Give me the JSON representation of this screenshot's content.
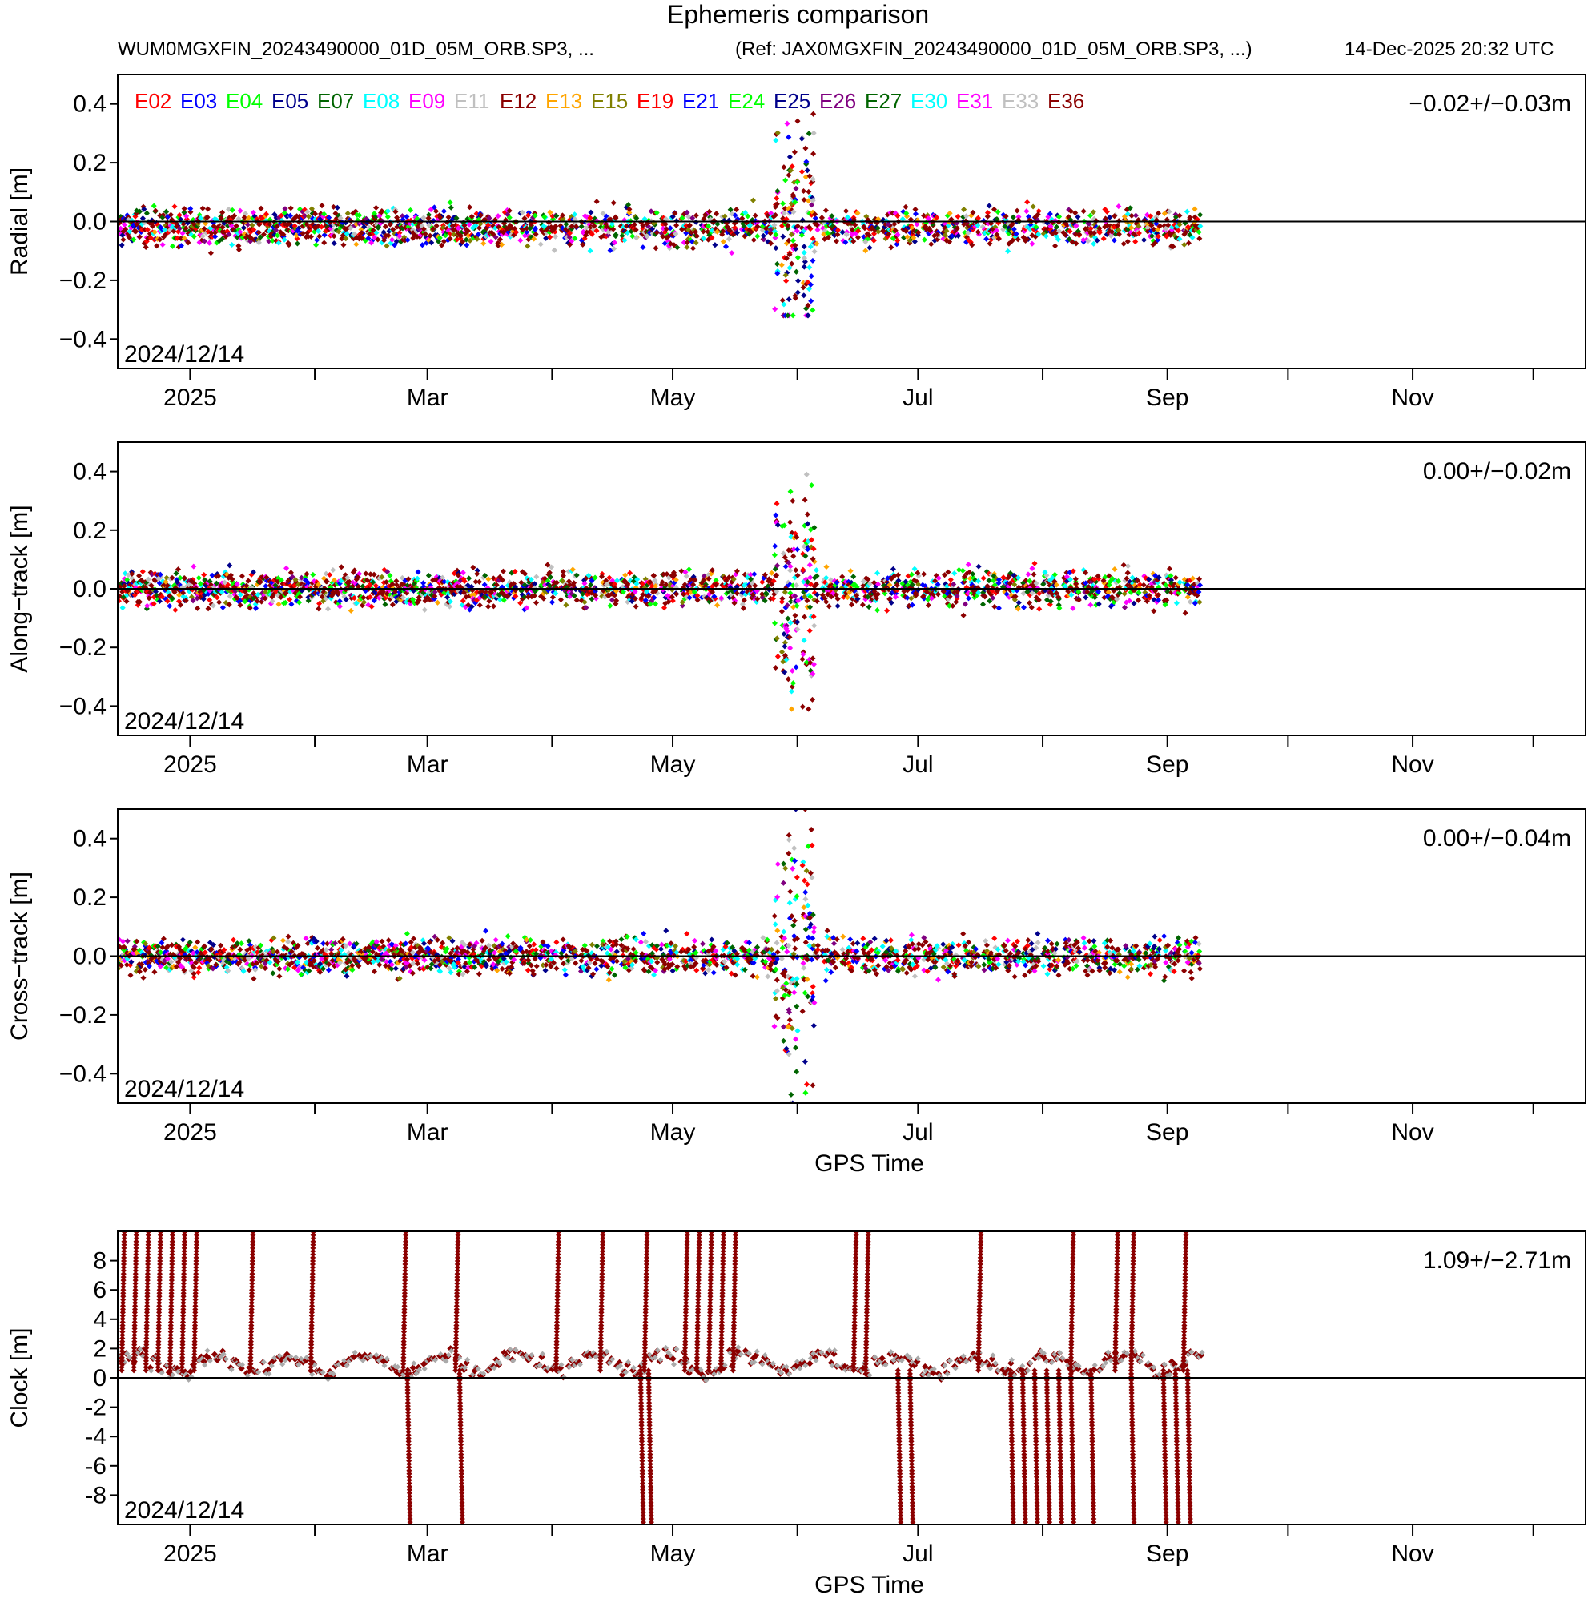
{
  "header": {
    "title": "Ephemeris comparison",
    "file": "WUM0MGXFIN_20243490000_01D_05M_ORB.SP3, ...",
    "reference": "(Ref: JAX0MGXFIN_20243490000_01D_05M_ORB.SP3, ...)",
    "generated": "14-Dec-2025 20:32 UTC"
  },
  "chart_data": [
    {
      "type": "scatter",
      "ylabel": "Radial [m]",
      "ylim": [
        -0.5,
        0.5
      ],
      "yticks": [
        -0.4,
        -0.2,
        0.0,
        0.2,
        0.4
      ],
      "ytick_labels": [
        "−0.4",
        "−0.2",
        "0.0",
        "0.2",
        "0.4"
      ],
      "stat": "−0.02+/−0.03m",
      "start_label": "2024/12/14",
      "xlabel": "",
      "zero_line": true,
      "baseline": {
        "mean": -0.02,
        "spread": 0.03
      },
      "spike": {
        "start": "2025-05-26",
        "end": "2025-06-05",
        "min": -0.32,
        "max": 0.42
      },
      "legend": {
        "placement": "top-left",
        "entries": [
          {
            "label": "E02",
            "color": "#ff0000"
          },
          {
            "label": "E03",
            "color": "#0000ff"
          },
          {
            "label": "E04",
            "color": "#00ff00"
          },
          {
            "label": "E05",
            "color": "#00008b"
          },
          {
            "label": "E07",
            "color": "#006400"
          },
          {
            "label": "E08",
            "color": "#00ffff"
          },
          {
            "label": "E09",
            "color": "#ff00ff"
          },
          {
            "label": "E11",
            "color": "#c0c0c0"
          },
          {
            "label": "E12",
            "color": "#8b0000"
          },
          {
            "label": "E13",
            "color": "#ffa500"
          },
          {
            "label": "E15",
            "color": "#808000"
          },
          {
            "label": "E19",
            "color": "#ff0000"
          },
          {
            "label": "E21",
            "color": "#0000ff"
          },
          {
            "label": "E24",
            "color": "#00ff00"
          },
          {
            "label": "E25",
            "color": "#00008b"
          },
          {
            "label": "E26",
            "color": "#800080"
          },
          {
            "label": "E27",
            "color": "#006400"
          },
          {
            "label": "E30",
            "color": "#00ffff"
          },
          {
            "label": "E31",
            "color": "#ff00ff"
          },
          {
            "label": "E33",
            "color": "#c0c0c0"
          },
          {
            "label": "E36",
            "color": "#8b0000"
          }
        ]
      }
    },
    {
      "type": "scatter",
      "ylabel": "Along−track [m]",
      "ylim": [
        -0.5,
        0.5
      ],
      "yticks": [
        -0.4,
        -0.2,
        0.0,
        0.2,
        0.4
      ],
      "ytick_labels": [
        "−0.4",
        "−0.2",
        "0.0",
        "0.2",
        "0.4"
      ],
      "stat": "0.00+/−0.02m",
      "start_label": "2024/12/14",
      "xlabel": "",
      "zero_line": true,
      "baseline": {
        "mean": 0.0,
        "spread": 0.03
      },
      "spike": {
        "start": "2025-05-26",
        "end": "2025-06-05",
        "min": -0.41,
        "max": 0.39
      }
    },
    {
      "type": "scatter",
      "ylabel": "Cross−track [m]",
      "ylim": [
        -0.5,
        0.5
      ],
      "yticks": [
        -0.4,
        -0.2,
        0.0,
        0.2,
        0.4
      ],
      "ytick_labels": [
        "−0.4",
        "−0.2",
        "0.0",
        "0.2",
        "0.4"
      ],
      "stat": "0.00+/−0.04m",
      "start_label": "2024/12/14",
      "xlabel": "GPS Time",
      "zero_line": true,
      "baseline": {
        "mean": 0.0,
        "spread": 0.03
      },
      "spike": {
        "start": "2025-05-26",
        "end": "2025-06-05",
        "min": -0.5,
        "max": 0.5
      }
    },
    {
      "type": "scatter",
      "ylabel": "Clock [m]",
      "ylim": [
        -10,
        10
      ],
      "yticks": [
        -8,
        -6,
        -4,
        -2,
        0,
        2,
        4,
        6,
        8
      ],
      "ytick_labels": [
        "-8",
        "-6",
        "-4",
        "-2",
        "0",
        "2",
        "4",
        "6",
        "8"
      ],
      "stat": "1.09+/−2.71m",
      "start_label": "2024/12/14",
      "xlabel": "GPS Time",
      "zero_line": true,
      "baseline": {
        "mean": 1.0,
        "spread": 0.5
      },
      "streaks_up": [
        "2024-12-15",
        "2024-12-18",
        "2024-12-21",
        "2024-12-24",
        "2024-12-27",
        "2024-12-30",
        "2025-01-02",
        "2025-01-16",
        "2025-01-31",
        "2025-02-23",
        "2025-03-08",
        "2025-04-02",
        "2025-04-13",
        "2025-04-24",
        "2025-05-04",
        "2025-05-07",
        "2025-05-10",
        "2025-05-13",
        "2025-05-16",
        "2025-06-15",
        "2025-06-18",
        "2025-07-16",
        "2025-08-08",
        "2025-08-19",
        "2025-08-23",
        "2025-09-05"
      ],
      "streaks_down": [
        "2025-02-24",
        "2025-03-09",
        "2025-04-23",
        "2025-04-25",
        "2025-06-26",
        "2025-06-29",
        "2025-07-24",
        "2025-07-27",
        "2025-07-30",
        "2025-08-02",
        "2025-08-05",
        "2025-08-08",
        "2025-08-13",
        "2025-08-23",
        "2025-08-31",
        "2025-09-03",
        "2025-09-06"
      ]
    }
  ],
  "x_axis": {
    "type": "date",
    "range": [
      "2024-12-14",
      "2025-12-14"
    ],
    "ticks": [
      {
        "date": "2025-01-01",
        "label": "2025"
      },
      {
        "date": "2025-03-01",
        "label": "Mar"
      },
      {
        "date": "2025-05-01",
        "label": "May"
      },
      {
        "date": "2025-07-01",
        "label": "Jul"
      },
      {
        "date": "2025-09-01",
        "label": "Sep"
      },
      {
        "date": "2025-11-01",
        "label": "Nov"
      }
    ],
    "minor_ticks": [
      "2025-02-01",
      "2025-04-01",
      "2025-06-01",
      "2025-08-01",
      "2025-10-01",
      "2025-12-01"
    ],
    "data_end": "2025-09-10"
  }
}
